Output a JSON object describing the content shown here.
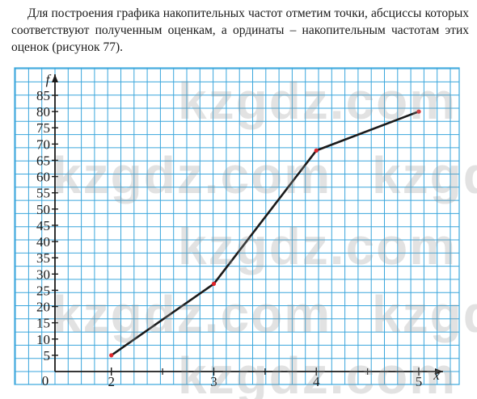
{
  "paragraph": "Для построения графика накопительных частот отметим точки, абсциссы которых соответствуют полученным оценкам, а ординаты – накопительным частотам этих оценок (рисунок 77).",
  "watermark": "kzgdz.com",
  "colors": {
    "grid": "#3aa6dc",
    "line": "#1a1a1a",
    "point": "#e0242a",
    "axis": "#1a1a1a"
  },
  "chart_data": {
    "type": "line",
    "xlabel": "x",
    "ylabel": "f",
    "origin_label": "0",
    "x_ticks": [
      2,
      3,
      4,
      5
    ],
    "y_ticks": [
      5,
      10,
      15,
      20,
      25,
      30,
      35,
      40,
      45,
      50,
      55,
      60,
      65,
      70,
      75,
      80,
      85
    ],
    "x": [
      2,
      3,
      4,
      5
    ],
    "y": [
      5,
      27,
      68,
      80
    ],
    "xlim": [
      1.45,
      5.0
    ],
    "ylim": [
      0,
      85
    ],
    "grid": true
  }
}
